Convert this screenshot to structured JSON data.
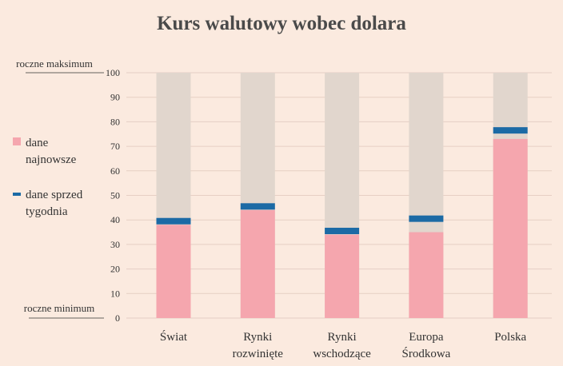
{
  "chart_data": {
    "type": "bar",
    "title": "Kurs walutowy wobec dolara",
    "categories": [
      [
        "Świat"
      ],
      [
        "Rynki",
        "rozwinięte"
      ],
      [
        "Rynki",
        "wschodzące"
      ],
      [
        "Europa",
        "Środkowa"
      ],
      [
        "Polska"
      ]
    ],
    "series": [
      {
        "name": "dane najnowsze",
        "values": [
          38,
          44,
          34,
          35,
          73
        ]
      },
      {
        "name": "dane sprzed tygodnia",
        "values": [
          39.5,
          45.5,
          35.5,
          40.5,
          76.5
        ]
      }
    ],
    "range_max": 100,
    "ylim": [
      0,
      100
    ],
    "yticks": [
      0,
      10,
      20,
      30,
      40,
      50,
      60,
      70,
      80,
      90,
      100
    ],
    "annotations": {
      "top": "roczne maksimum",
      "bottom": "roczne minimum"
    },
    "legend": {
      "position": "left",
      "items": [
        {
          "lines": [
            "dane",
            "najnowsze"
          ],
          "marker": "square"
        },
        {
          "lines": [
            "dane sprzed",
            "tygodnia"
          ],
          "marker": "line"
        }
      ]
    },
    "colors": {
      "background": "#fbeadf",
      "range": "#e1d6cd",
      "latest": "#f5a6ae",
      "week_ago": "#1b6aa5",
      "grid": "#e6cfc4"
    },
    "grid": true
  }
}
